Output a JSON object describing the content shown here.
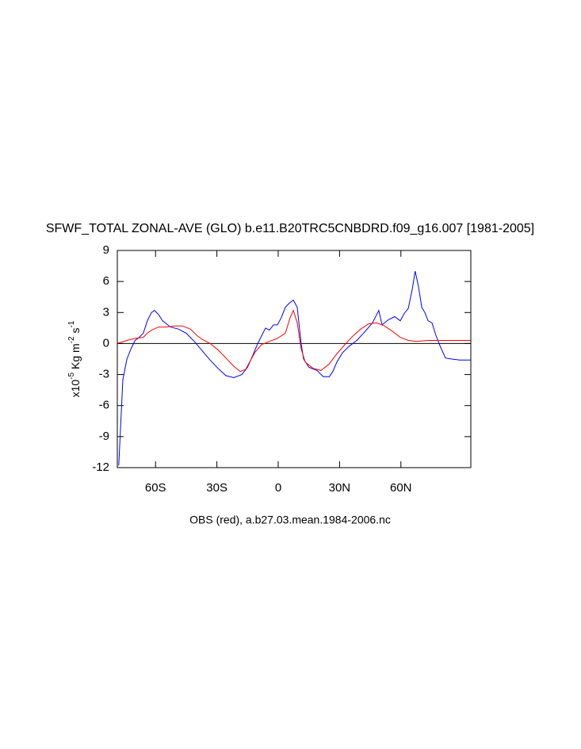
{
  "chart_data": {
    "type": "line",
    "title": "SFWF_TOTAL ZONAL-AVE (GLO) b.e11.B20TRC5CNBDRD.f09_g16.007 [1981-2005]",
    "subtitle": "OBS (red), a.b27.03.mean.1984-2006.nc",
    "ylabel": [
      "x10",
      "-5",
      " Kg m",
      "-2",
      " s",
      "-1"
    ],
    "xlim": [
      -78.7,
      94.2
    ],
    "ylim": [
      -12,
      9
    ],
    "xticks": [
      {
        "value": -60,
        "label": "60S"
      },
      {
        "value": -30,
        "label": "30S"
      },
      0,
      {
        "value": 30,
        "label": "30N"
      },
      {
        "value": 60,
        "label": "60N"
      }
    ],
    "yticks": [
      9,
      6,
      3,
      0,
      -3,
      -6,
      -9,
      -12
    ],
    "reference_line": 0,
    "series": [
      {
        "color": "#0000ff",
        "x": [
          -78,
          -76,
          -74,
          -72,
          -70,
          -68,
          -66,
          -64,
          -62,
          -60.5,
          -58.5,
          -56.6,
          -52.7,
          -48.8,
          -45,
          -41,
          -37.2,
          -33.3,
          -29.5,
          -25.6,
          -21.7,
          -17.8,
          -15,
          -12.8,
          -10,
          -8,
          -6.2,
          -4.3,
          -2.3,
          -0.4,
          1.5,
          3.5,
          5.4,
          7.4,
          9.3,
          11.2,
          12.4,
          15,
          19,
          22,
          25,
          26.7,
          28.7,
          31.4,
          34.5,
          38.4,
          42.2,
          46.1,
          49.2,
          50.8,
          53.9,
          57,
          59.7,
          61.6,
          63.6,
          65.5,
          67,
          68.6,
          70.2,
          71.7,
          73.3,
          75.2,
          77.1,
          79.1,
          81.8,
          84.9,
          88.8,
          94.2
        ],
        "values": [
          -11.8,
          -3.5,
          -1.5,
          -0.5,
          0.3,
          0.6,
          1.0,
          2.2,
          3.0,
          3.2,
          2.8,
          2.2,
          1.6,
          1.4,
          1.0,
          0.2,
          -0.7,
          -1.6,
          -2.4,
          -3.1,
          -3.3,
          -3.0,
          -2.3,
          -1.3,
          0,
          0.8,
          1.5,
          1.3,
          1.8,
          1.8,
          2.5,
          3.5,
          3.9,
          4.2,
          3.5,
          0,
          -1.5,
          -2.3,
          -2.6,
          -3.2,
          -3.2,
          -2.7,
          -1.8,
          -0.9,
          -0.3,
          0.3,
          1.1,
          2.0,
          3.2,
          1.8,
          2.3,
          2.6,
          2.2,
          2.9,
          3.4,
          5.2,
          7.0,
          5.5,
          3.5,
          3.0,
          2.2,
          2.0,
          0.8,
          -0.2,
          -1.4,
          -1.5,
          -1.6,
          -1.6
        ]
      },
      {
        "color": "#ff0000",
        "x": [
          -78.7,
          -74,
          -70,
          -66,
          -64,
          -62,
          -58.5,
          -54.7,
          -50.8,
          -46.9,
          -43,
          -39.9,
          -37.2,
          -33.3,
          -29.5,
          -25.6,
          -21.7,
          -18.6,
          -15.9,
          -13.2,
          -11.2,
          -8.1,
          -4.3,
          -0.4,
          3.5,
          5.8,
          7.4,
          9.3,
          11.2,
          13.2,
          17,
          20.9,
          24.8,
          28.7,
          32.6,
          36.4,
          40.3,
          44.2,
          48.1,
          52,
          55.8,
          59.7,
          63.6,
          67.4,
          73.3,
          81,
          88.8,
          94.2
        ],
        "values": [
          0.0,
          0.3,
          0.5,
          0.6,
          1.0,
          1.3,
          1.6,
          1.6,
          1.7,
          1.7,
          1.4,
          0.8,
          0.4,
          0.0,
          -0.6,
          -1.4,
          -2.2,
          -2.7,
          -2.5,
          -1.5,
          -0.8,
          -0.1,
          0.2,
          0.5,
          1.0,
          2.5,
          3.2,
          2.0,
          -0.5,
          -1.8,
          -2.4,
          -2.6,
          -2.0,
          -1.0,
          -0.1,
          0.7,
          1.4,
          1.9,
          2.0,
          1.7,
          1.2,
          0.6,
          0.3,
          0.2,
          0.3,
          0.3,
          0.3,
          0.3
        ]
      }
    ]
  }
}
